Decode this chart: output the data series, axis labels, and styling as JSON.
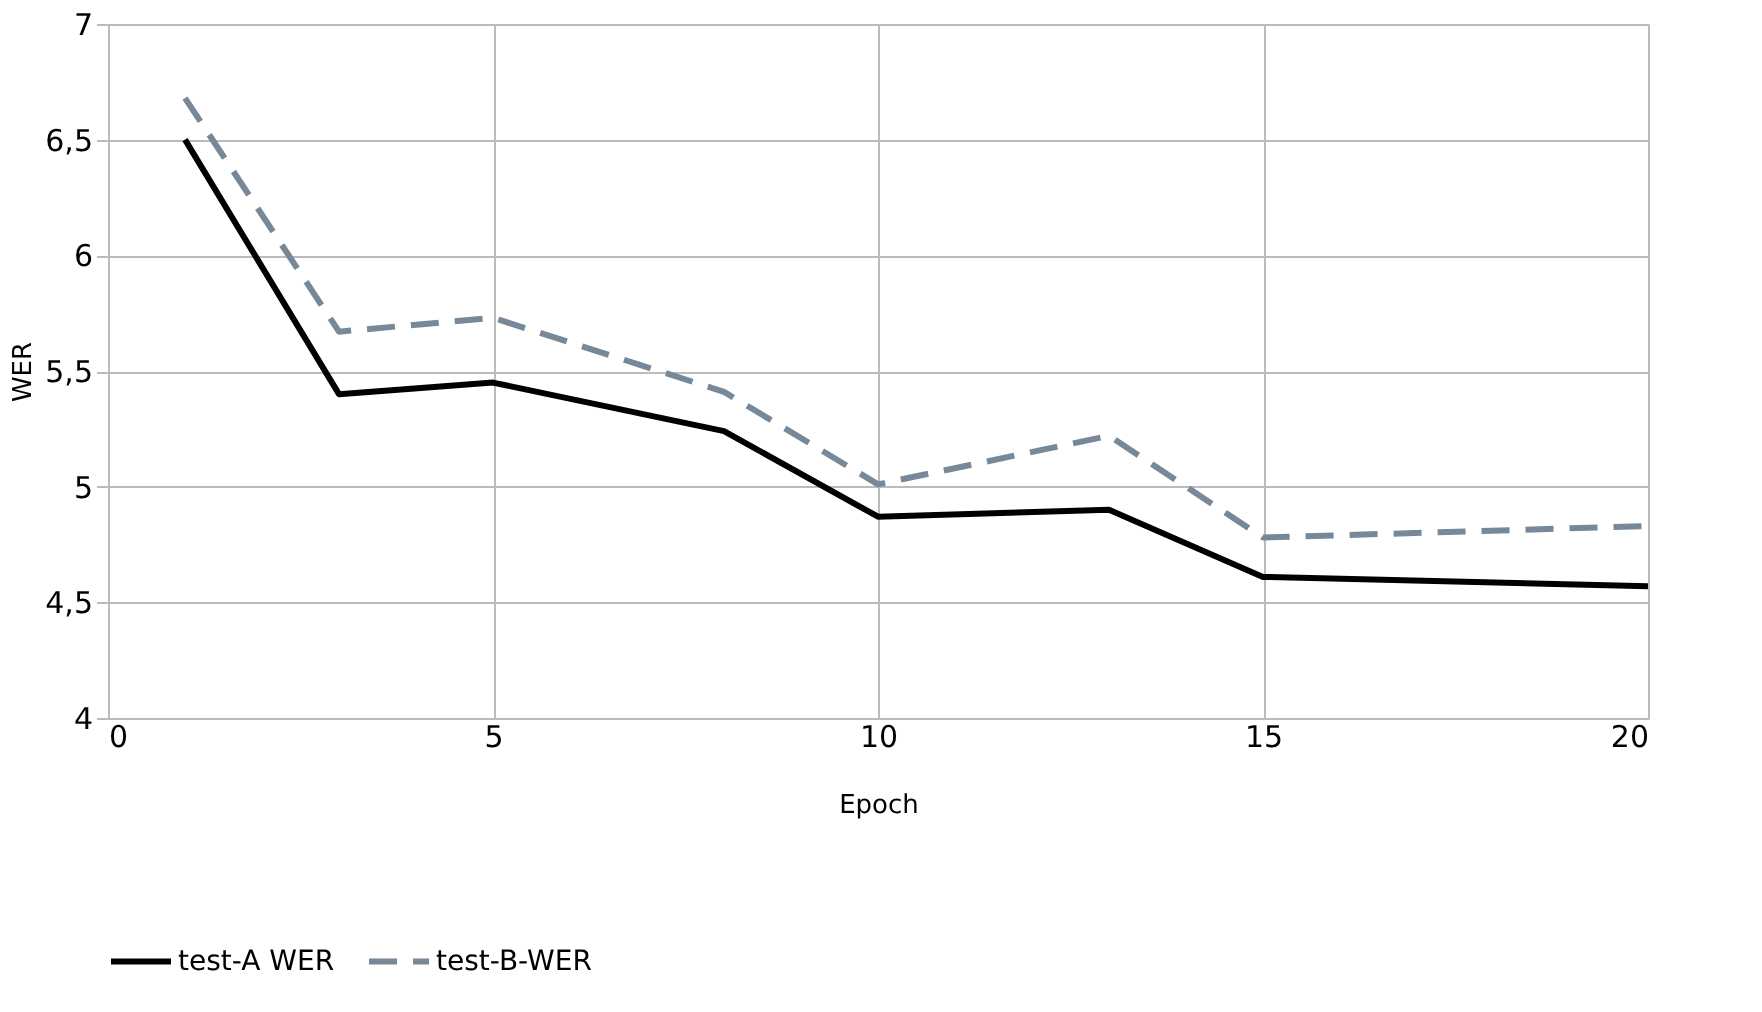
{
  "chart_data": {
    "type": "line",
    "xlabel": "Epoch",
    "ylabel": "WER",
    "xlim": [
      0,
      20
    ],
    "xticks": [
      0,
      5,
      10,
      15,
      20
    ],
    "ylim": [
      4,
      7
    ],
    "yticks": [
      4,
      {
        "value": 4.5,
        "label": "4,5"
      },
      5,
      {
        "value": 5.5,
        "label": "5,5"
      },
      6,
      {
        "value": 6.5,
        "label": "6,5"
      },
      7
    ],
    "grid": true,
    "legend": "bottom",
    "marker": "none",
    "series": [
      {
        "name": "test-A WER",
        "color": "#000000",
        "line_style": "solid",
        "x": [
          1,
          3,
          5,
          8,
          10,
          13,
          15,
          20
        ],
        "values": [
          6.5,
          5.4,
          5.45,
          5.24,
          4.87,
          4.9,
          4.61,
          4.57
        ]
      },
      {
        "name": "test-B-WER",
        "color": "#778899",
        "line_style": "dashed",
        "x": [
          1,
          3,
          5,
          8,
          10,
          13,
          15,
          20
        ],
        "values": [
          6.68,
          5.67,
          5.73,
          5.41,
          5.01,
          5.22,
          4.78,
          4.83
        ]
      }
    ]
  }
}
